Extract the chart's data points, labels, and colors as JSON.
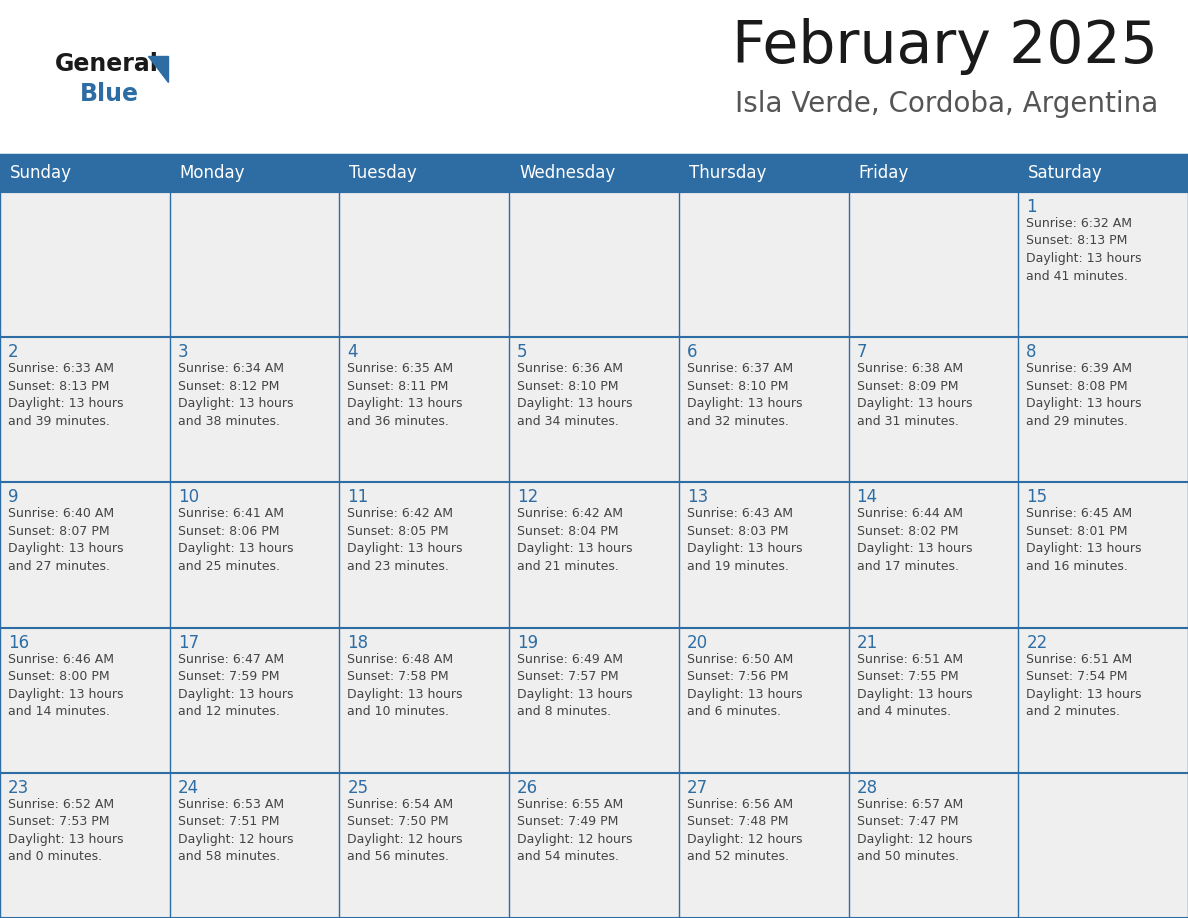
{
  "title": "February 2025",
  "subtitle": "Isla Verde, Cordoba, Argentina",
  "header_bg": "#2E6DA4",
  "header_text": "#FFFFFF",
  "cell_bg": "#EFEFEF",
  "day_number_color": "#2E6DA4",
  "text_color": "#444444",
  "border_color": "#2E6DA4",
  "days_of_week": [
    "Sunday",
    "Monday",
    "Tuesday",
    "Wednesday",
    "Thursday",
    "Friday",
    "Saturday"
  ],
  "logo_color": "#2E6DA4",
  "title_fontsize": 42,
  "subtitle_fontsize": 20,
  "header_fontsize": 12,
  "day_num_fontsize": 12,
  "info_fontsize": 9,
  "weeks": [
    [
      {
        "day": "",
        "info": ""
      },
      {
        "day": "",
        "info": ""
      },
      {
        "day": "",
        "info": ""
      },
      {
        "day": "",
        "info": ""
      },
      {
        "day": "",
        "info": ""
      },
      {
        "day": "",
        "info": ""
      },
      {
        "day": "1",
        "info": "Sunrise: 6:32 AM\nSunset: 8:13 PM\nDaylight: 13 hours\nand 41 minutes."
      }
    ],
    [
      {
        "day": "2",
        "info": "Sunrise: 6:33 AM\nSunset: 8:13 PM\nDaylight: 13 hours\nand 39 minutes."
      },
      {
        "day": "3",
        "info": "Sunrise: 6:34 AM\nSunset: 8:12 PM\nDaylight: 13 hours\nand 38 minutes."
      },
      {
        "day": "4",
        "info": "Sunrise: 6:35 AM\nSunset: 8:11 PM\nDaylight: 13 hours\nand 36 minutes."
      },
      {
        "day": "5",
        "info": "Sunrise: 6:36 AM\nSunset: 8:10 PM\nDaylight: 13 hours\nand 34 minutes."
      },
      {
        "day": "6",
        "info": "Sunrise: 6:37 AM\nSunset: 8:10 PM\nDaylight: 13 hours\nand 32 minutes."
      },
      {
        "day": "7",
        "info": "Sunrise: 6:38 AM\nSunset: 8:09 PM\nDaylight: 13 hours\nand 31 minutes."
      },
      {
        "day": "8",
        "info": "Sunrise: 6:39 AM\nSunset: 8:08 PM\nDaylight: 13 hours\nand 29 minutes."
      }
    ],
    [
      {
        "day": "9",
        "info": "Sunrise: 6:40 AM\nSunset: 8:07 PM\nDaylight: 13 hours\nand 27 minutes."
      },
      {
        "day": "10",
        "info": "Sunrise: 6:41 AM\nSunset: 8:06 PM\nDaylight: 13 hours\nand 25 minutes."
      },
      {
        "day": "11",
        "info": "Sunrise: 6:42 AM\nSunset: 8:05 PM\nDaylight: 13 hours\nand 23 minutes."
      },
      {
        "day": "12",
        "info": "Sunrise: 6:42 AM\nSunset: 8:04 PM\nDaylight: 13 hours\nand 21 minutes."
      },
      {
        "day": "13",
        "info": "Sunrise: 6:43 AM\nSunset: 8:03 PM\nDaylight: 13 hours\nand 19 minutes."
      },
      {
        "day": "14",
        "info": "Sunrise: 6:44 AM\nSunset: 8:02 PM\nDaylight: 13 hours\nand 17 minutes."
      },
      {
        "day": "15",
        "info": "Sunrise: 6:45 AM\nSunset: 8:01 PM\nDaylight: 13 hours\nand 16 minutes."
      }
    ],
    [
      {
        "day": "16",
        "info": "Sunrise: 6:46 AM\nSunset: 8:00 PM\nDaylight: 13 hours\nand 14 minutes."
      },
      {
        "day": "17",
        "info": "Sunrise: 6:47 AM\nSunset: 7:59 PM\nDaylight: 13 hours\nand 12 minutes."
      },
      {
        "day": "18",
        "info": "Sunrise: 6:48 AM\nSunset: 7:58 PM\nDaylight: 13 hours\nand 10 minutes."
      },
      {
        "day": "19",
        "info": "Sunrise: 6:49 AM\nSunset: 7:57 PM\nDaylight: 13 hours\nand 8 minutes."
      },
      {
        "day": "20",
        "info": "Sunrise: 6:50 AM\nSunset: 7:56 PM\nDaylight: 13 hours\nand 6 minutes."
      },
      {
        "day": "21",
        "info": "Sunrise: 6:51 AM\nSunset: 7:55 PM\nDaylight: 13 hours\nand 4 minutes."
      },
      {
        "day": "22",
        "info": "Sunrise: 6:51 AM\nSunset: 7:54 PM\nDaylight: 13 hours\nand 2 minutes."
      }
    ],
    [
      {
        "day": "23",
        "info": "Sunrise: 6:52 AM\nSunset: 7:53 PM\nDaylight: 13 hours\nand 0 minutes."
      },
      {
        "day": "24",
        "info": "Sunrise: 6:53 AM\nSunset: 7:51 PM\nDaylight: 12 hours\nand 58 minutes."
      },
      {
        "day": "25",
        "info": "Sunrise: 6:54 AM\nSunset: 7:50 PM\nDaylight: 12 hours\nand 56 minutes."
      },
      {
        "day": "26",
        "info": "Sunrise: 6:55 AM\nSunset: 7:49 PM\nDaylight: 12 hours\nand 54 minutes."
      },
      {
        "day": "27",
        "info": "Sunrise: 6:56 AM\nSunset: 7:48 PM\nDaylight: 12 hours\nand 52 minutes."
      },
      {
        "day": "28",
        "info": "Sunrise: 6:57 AM\nSunset: 7:47 PM\nDaylight: 12 hours\nand 50 minutes."
      },
      {
        "day": "",
        "info": ""
      }
    ]
  ]
}
